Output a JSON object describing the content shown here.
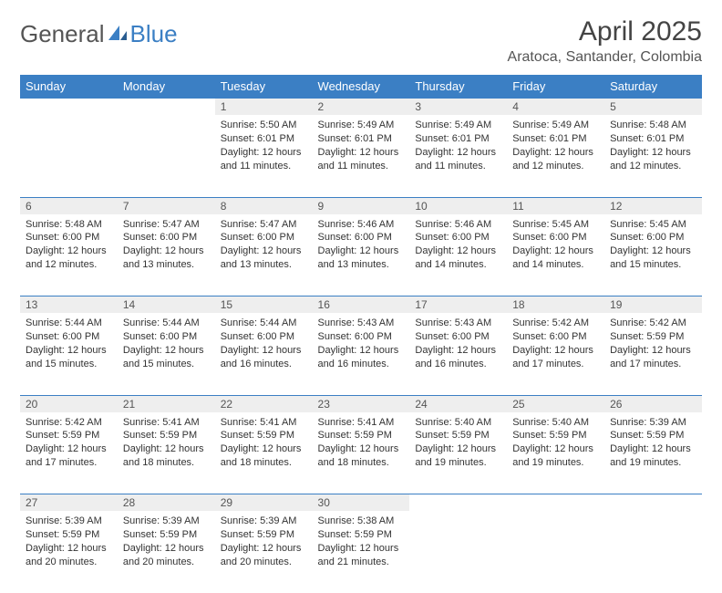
{
  "logo": {
    "text1": "General",
    "text2": "Blue"
  },
  "title": "April 2025",
  "location": "Aratoca, Santander, Colombia",
  "colors": {
    "header_bg": "#3b7fc4",
    "header_text": "#ffffff",
    "daynum_bg": "#eeeeee",
    "border": "#3b7fc4",
    "body_bg": "#ffffff",
    "text": "#333333"
  },
  "typography": {
    "title_fontsize": 30,
    "location_fontsize": 16,
    "dayheader_fontsize": 13,
    "daynum_fontsize": 12,
    "cell_fontsize": 11
  },
  "day_headers": [
    "Sunday",
    "Monday",
    "Tuesday",
    "Wednesday",
    "Thursday",
    "Friday",
    "Saturday"
  ],
  "weeks": [
    [
      null,
      null,
      {
        "n": "1",
        "sunrise": "5:50 AM",
        "sunset": "6:01 PM",
        "daylight": "12 hours and 11 minutes."
      },
      {
        "n": "2",
        "sunrise": "5:49 AM",
        "sunset": "6:01 PM",
        "daylight": "12 hours and 11 minutes."
      },
      {
        "n": "3",
        "sunrise": "5:49 AM",
        "sunset": "6:01 PM",
        "daylight": "12 hours and 11 minutes."
      },
      {
        "n": "4",
        "sunrise": "5:49 AM",
        "sunset": "6:01 PM",
        "daylight": "12 hours and 12 minutes."
      },
      {
        "n": "5",
        "sunrise": "5:48 AM",
        "sunset": "6:01 PM",
        "daylight": "12 hours and 12 minutes."
      }
    ],
    [
      {
        "n": "6",
        "sunrise": "5:48 AM",
        "sunset": "6:00 PM",
        "daylight": "12 hours and 12 minutes."
      },
      {
        "n": "7",
        "sunrise": "5:47 AM",
        "sunset": "6:00 PM",
        "daylight": "12 hours and 13 minutes."
      },
      {
        "n": "8",
        "sunrise": "5:47 AM",
        "sunset": "6:00 PM",
        "daylight": "12 hours and 13 minutes."
      },
      {
        "n": "9",
        "sunrise": "5:46 AM",
        "sunset": "6:00 PM",
        "daylight": "12 hours and 13 minutes."
      },
      {
        "n": "10",
        "sunrise": "5:46 AM",
        "sunset": "6:00 PM",
        "daylight": "12 hours and 14 minutes."
      },
      {
        "n": "11",
        "sunrise": "5:45 AM",
        "sunset": "6:00 PM",
        "daylight": "12 hours and 14 minutes."
      },
      {
        "n": "12",
        "sunrise": "5:45 AM",
        "sunset": "6:00 PM",
        "daylight": "12 hours and 15 minutes."
      }
    ],
    [
      {
        "n": "13",
        "sunrise": "5:44 AM",
        "sunset": "6:00 PM",
        "daylight": "12 hours and 15 minutes."
      },
      {
        "n": "14",
        "sunrise": "5:44 AM",
        "sunset": "6:00 PM",
        "daylight": "12 hours and 15 minutes."
      },
      {
        "n": "15",
        "sunrise": "5:44 AM",
        "sunset": "6:00 PM",
        "daylight": "12 hours and 16 minutes."
      },
      {
        "n": "16",
        "sunrise": "5:43 AM",
        "sunset": "6:00 PM",
        "daylight": "12 hours and 16 minutes."
      },
      {
        "n": "17",
        "sunrise": "5:43 AM",
        "sunset": "6:00 PM",
        "daylight": "12 hours and 16 minutes."
      },
      {
        "n": "18",
        "sunrise": "5:42 AM",
        "sunset": "6:00 PM",
        "daylight": "12 hours and 17 minutes."
      },
      {
        "n": "19",
        "sunrise": "5:42 AM",
        "sunset": "5:59 PM",
        "daylight": "12 hours and 17 minutes."
      }
    ],
    [
      {
        "n": "20",
        "sunrise": "5:42 AM",
        "sunset": "5:59 PM",
        "daylight": "12 hours and 17 minutes."
      },
      {
        "n": "21",
        "sunrise": "5:41 AM",
        "sunset": "5:59 PM",
        "daylight": "12 hours and 18 minutes."
      },
      {
        "n": "22",
        "sunrise": "5:41 AM",
        "sunset": "5:59 PM",
        "daylight": "12 hours and 18 minutes."
      },
      {
        "n": "23",
        "sunrise": "5:41 AM",
        "sunset": "5:59 PM",
        "daylight": "12 hours and 18 minutes."
      },
      {
        "n": "24",
        "sunrise": "5:40 AM",
        "sunset": "5:59 PM",
        "daylight": "12 hours and 19 minutes."
      },
      {
        "n": "25",
        "sunrise": "5:40 AM",
        "sunset": "5:59 PM",
        "daylight": "12 hours and 19 minutes."
      },
      {
        "n": "26",
        "sunrise": "5:39 AM",
        "sunset": "5:59 PM",
        "daylight": "12 hours and 19 minutes."
      }
    ],
    [
      {
        "n": "27",
        "sunrise": "5:39 AM",
        "sunset": "5:59 PM",
        "daylight": "12 hours and 20 minutes."
      },
      {
        "n": "28",
        "sunrise": "5:39 AM",
        "sunset": "5:59 PM",
        "daylight": "12 hours and 20 minutes."
      },
      {
        "n": "29",
        "sunrise": "5:39 AM",
        "sunset": "5:59 PM",
        "daylight": "12 hours and 20 minutes."
      },
      {
        "n": "30",
        "sunrise": "5:38 AM",
        "sunset": "5:59 PM",
        "daylight": "12 hours and 21 minutes."
      },
      null,
      null,
      null
    ]
  ],
  "labels": {
    "sunrise": "Sunrise:",
    "sunset": "Sunset:",
    "daylight": "Daylight:"
  }
}
